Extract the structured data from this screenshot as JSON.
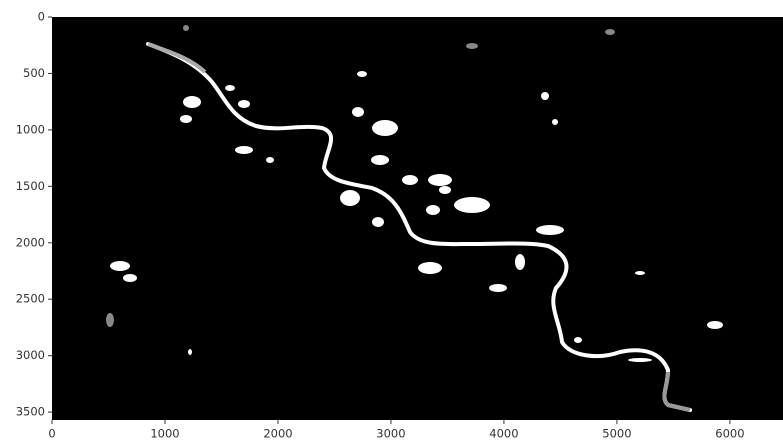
{
  "chart_data": {
    "type": "image",
    "xlim": [
      0,
      6470
    ],
    "ylim": [
      3570,
      0
    ],
    "xticks": [
      0,
      1000,
      2000,
      3000,
      4000,
      5000,
      6000
    ],
    "yticks": [
      0,
      500,
      1000,
      1500,
      2000,
      2500,
      3000,
      3500
    ]
  }
}
